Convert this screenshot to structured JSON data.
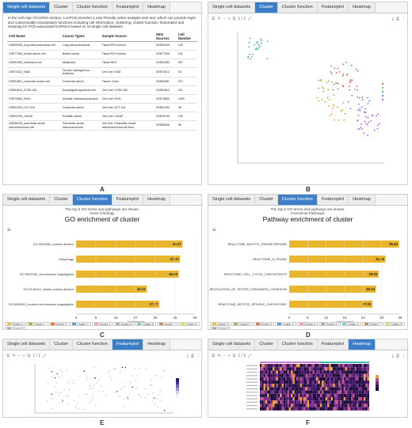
{
  "tabs": [
    "Single cell datasets",
    "Cluster",
    "Cluster function",
    "Featureplot",
    "Heatmap"
  ],
  "letters": [
    "A",
    "B",
    "C",
    "D",
    "E",
    "F"
  ],
  "panelA": {
    "description": "In the cell map of lncRNA section, LncPCD provides a user-friendly online analysis web tool, which can provide rapid and customizable visualization functions including cell information, clustering, cluster function, featureplot and heatmap for PCD-associated lncRNAs based on 10 single cell datasets.",
    "headers": [
      "Cell Name",
      "Cancer Types",
      "Sample Source",
      "GEO Sources",
      "Cell Number"
    ],
    "rows": [
      [
        "GSE69405_lung adenocarcinoma cell",
        "Lung adenocarcinoma",
        "Tissue:PDX tumors",
        "GSE69405",
        "126"
      ],
      [
        "GSE77308_breast cancer cell",
        "Breast cancer",
        "Tissue:PDX tumors",
        "GSE77308",
        "191"
      ],
      [
        "GSE81383_melanoma cell",
        "Melanoma",
        "Tissue:SKH",
        "GSE81383",
        "307"
      ],
      [
        "GSE70312_K562",
        "Chronic myelogenous leukemia",
        "Cell Line: K562",
        "GSE70312",
        "93"
      ],
      [
        "GSE81861_colorectal cancer cell",
        "Colorectal cancer",
        "Tissue: Colon",
        "GSE81861",
        "374"
      ],
      [
        "GSE81812_KYSE-180",
        "Esophageal squamous cell",
        "Cell Line: KYSE-180",
        "GSE81812",
        "222"
      ],
      [
        "GSE70660_RH41",
        "Alveolar rhabdomyosarcoma",
        "Cell Line: Rh41",
        "GSE70660",
        "1049"
      ],
      [
        "GSE51254_HCT-116",
        "Colorectal cancer",
        "Cell Line: HCT-116",
        "GSE51254",
        "96"
      ],
      [
        "GSE99795_LNCaP",
        "Prostate cancer",
        "Cell Line: LNCaP",
        "GSE99795",
        "145"
      ],
      [
        "GSE85035_pancreatic ductal adenocarcinoma cell",
        "Pancreatic ductal adenocarcinoma",
        "Cell Line: Pancreatic ductal adenocarcinoma cell lines",
        "GSE85035",
        "96"
      ]
    ]
  },
  "toolbar": {
    "page": "1 / 1",
    "zoom_glyph": "Q",
    "plus": "+",
    "minus": "−"
  },
  "panelC": {
    "subtitle1": "The top 5 GO terms and pathways are shown.",
    "subtitle2": "Gene Ontology",
    "title": "GO enrichment of cluster"
  },
  "panelD": {
    "subtitle1": "The top 5 GO terms and pathways are shown.",
    "subtitle2": "Functional Pathways",
    "title": "Pathway enrichment of cluster"
  },
  "legend": [
    "Cluster 0",
    "Cluster 1",
    "Cluster 2",
    "Cluster 3",
    "Cluster 4",
    "Cluster 5",
    "Cluster 6",
    "Cluster 7",
    "Cluster 8",
    "Cluster 9"
  ],
  "legend_colors": [
    "#f0c040",
    "#8fc040",
    "#f07040",
    "#5b9bd5",
    "#f4a0b0",
    "#b0b0b0",
    "#7fcfcf",
    "#c09060",
    "#e0e060",
    "#a0a0d0"
  ],
  "chart_data": [
    {
      "type": "bar",
      "title": "GO enrichment of cluster",
      "categories": [
        "GO:0000280_nuclear division",
        "Autophagy",
        "GO:0007059_chromosome segregation",
        "GO:0140014_mitotic nuclear division",
        "GO:0098813_nuclear chromosome segregation"
      ],
      "values": [
        48.37,
        47.22,
        46.66,
        32.21,
        37.77
      ],
      "xlabel": "-log10(pvalue)",
      "xticks": [
        0,
        9,
        18,
        27,
        36,
        45,
        54
      ],
      "xlim": [
        0,
        54
      ],
      "bar_color": "#e8b52c"
    },
    {
      "type": "bar",
      "title": "Pathway enrichment of cluster",
      "categories": [
        "REACTOME_MITOTIC_PROMETAPHASE",
        "REACTOME_M_PHASE",
        "REACTOME_CELL_CYCLE_CHECKPOINTS",
        "REACTOME_RESOLUTION_OF_SISTER_CHROMATID_COHESION",
        "REACTOME_MITOTIC_SPINDLE_CHECKPOINT"
      ],
      "values": [
        35.64,
        31.25,
        29.03,
        28.14,
        27.01
      ],
      "xlabel": "-log10(pvalue)",
      "xticks": [
        0,
        6,
        12,
        18,
        24,
        30,
        36
      ],
      "xlim": [
        0,
        36
      ],
      "bar_color": "#e8b52c"
    }
  ]
}
